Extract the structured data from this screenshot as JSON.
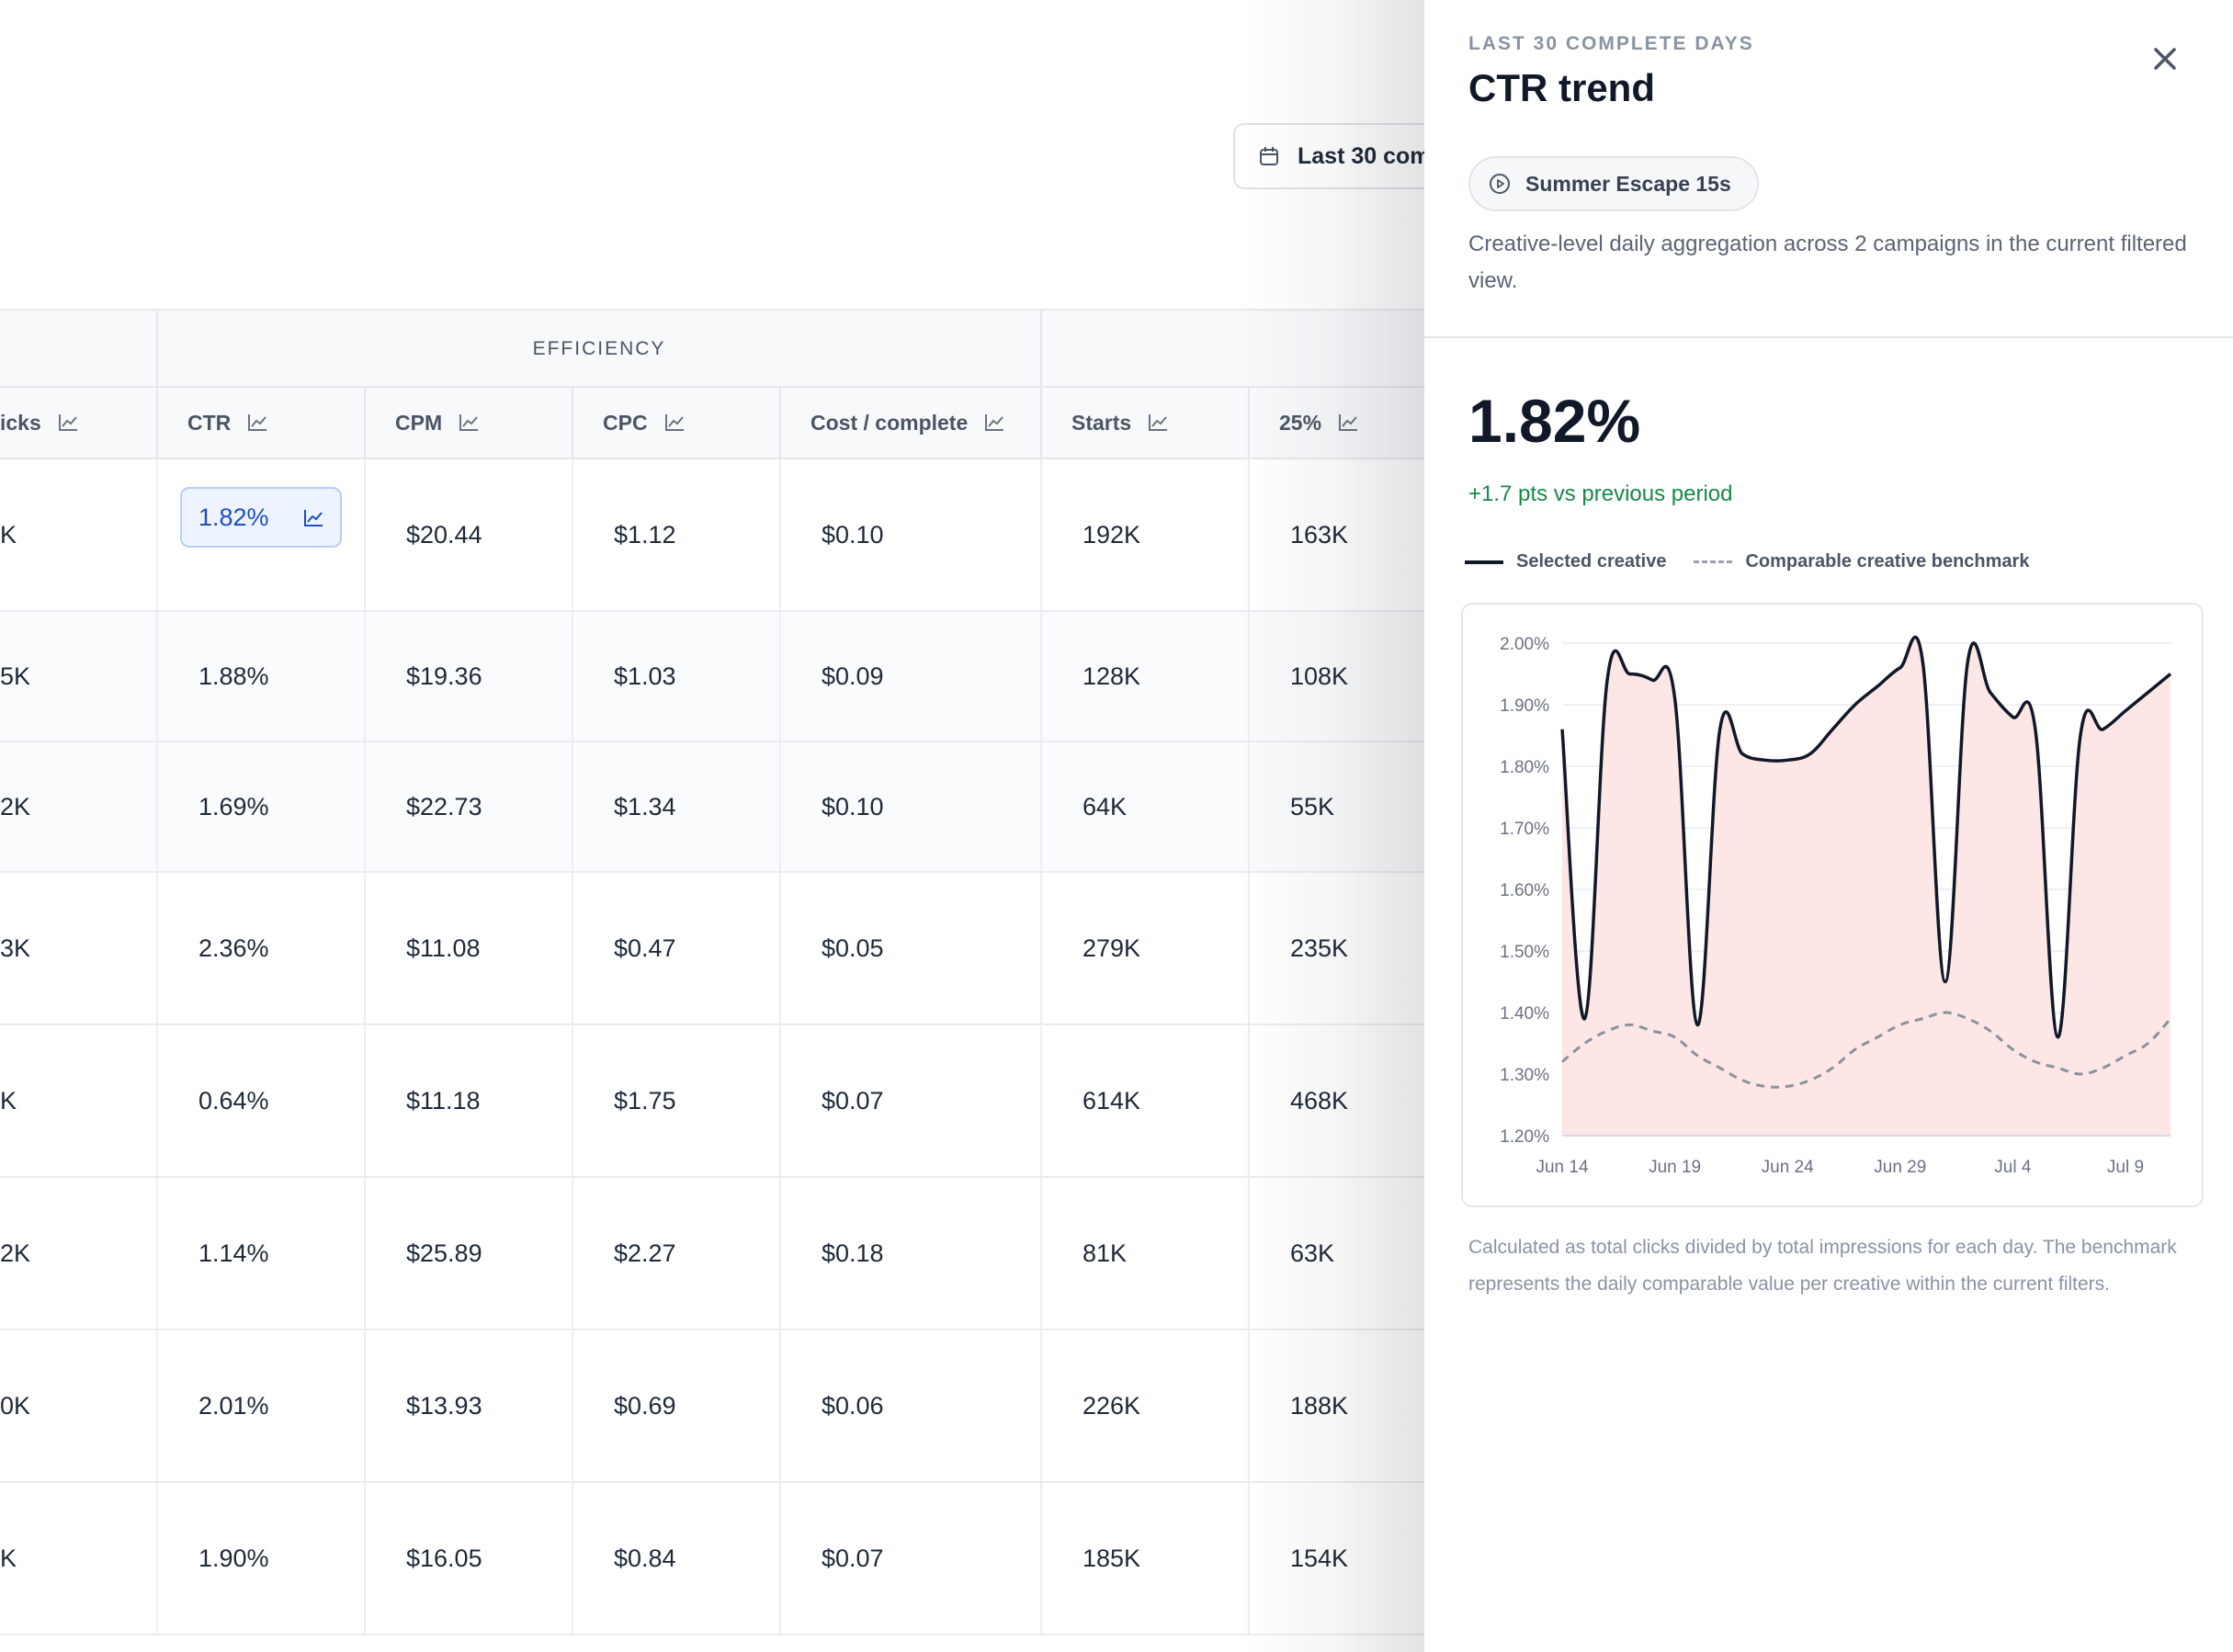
{
  "toolbar": {
    "date_range_label": "Last 30 com"
  },
  "table": {
    "groups": [
      {
        "label": "EFFICIENCY"
      }
    ],
    "columns": [
      {
        "label": "icks"
      },
      {
        "label": "CTR"
      },
      {
        "label": "CPM"
      },
      {
        "label": "CPC"
      },
      {
        "label": "Cost / complete"
      },
      {
        "label": "Starts"
      },
      {
        "label": "25%"
      }
    ],
    "rows": [
      [
        "K",
        "1.82%",
        "$20.44",
        "$1.12",
        "$0.10",
        "192K",
        "163K"
      ],
      [
        "5K",
        "1.88%",
        "$19.36",
        "$1.03",
        "$0.09",
        "128K",
        "108K"
      ],
      [
        "2K",
        "1.69%",
        "$22.73",
        "$1.34",
        "$0.10",
        "64K",
        "55K"
      ],
      [
        "3K",
        "2.36%",
        "$11.08",
        "$0.47",
        "$0.05",
        "279K",
        "235K"
      ],
      [
        "K",
        "0.64%",
        "$11.18",
        "$1.75",
        "$0.07",
        "614K",
        "468K"
      ],
      [
        "2K",
        "1.14%",
        "$25.89",
        "$2.27",
        "$0.18",
        "81K",
        "63K"
      ],
      [
        "0K",
        "2.01%",
        "$13.93",
        "$0.69",
        "$0.06",
        "226K",
        "188K"
      ],
      [
        "K",
        "1.90%",
        "$16.05",
        "$0.84",
        "$0.07",
        "185K",
        "154K"
      ]
    ]
  },
  "drawer": {
    "eyebrow": "LAST 30 COMPLETE DAYS",
    "title": "CTR trend",
    "creative_chip": "Summer Escape 15s",
    "description": "Creative-level daily aggregation across 2 campaigns in the current filtered view.",
    "metric_value": "1.82%",
    "metric_delta": "+1.7 pts vs previous period",
    "legend": {
      "selected": "Selected creative",
      "benchmark": "Comparable creative benchmark"
    },
    "footnote": "Calculated as total clicks divided by total impressions for each day. The benchmark represents the daily comparable value per creative within the current filters."
  },
  "colors": {
    "accent_blue": "#1d4fc0",
    "positive_green": "#168a47",
    "area_fill": "#fde7e6",
    "line": "#111827",
    "benchmark": "#9ca3af"
  },
  "chart_data": {
    "type": "area",
    "title": "",
    "xlabel": "",
    "ylabel": "",
    "x_ticks": [
      "Jun 14",
      "Jun 19",
      "Jun 24",
      "Jun 29",
      "Jul 4",
      "Jul 9"
    ],
    "y_ticks": [
      "1.20%",
      "1.30%",
      "1.40%",
      "1.50%",
      "1.60%",
      "1.70%",
      "1.80%",
      "1.90%",
      "2.00%"
    ],
    "ylim": [
      1.2,
      2.0
    ],
    "grid": true,
    "legend_position": "top-left",
    "series": [
      {
        "name": "Selected creative",
        "style": "solid",
        "points": [
          {
            "x": "Jun 14",
            "y": 1.86
          },
          {
            "x": "Jun 15",
            "y": 1.39
          },
          {
            "x": "Jun 16",
            "y": 1.94
          },
          {
            "x": "Jun 17",
            "y": 1.95
          },
          {
            "x": "Jun 18",
            "y": 1.94
          },
          {
            "x": "Jun 19",
            "y": 1.91
          },
          {
            "x": "Jun 20",
            "y": 1.38
          },
          {
            "x": "Jun 21",
            "y": 1.86
          },
          {
            "x": "Jun 22",
            "y": 1.82
          },
          {
            "x": "Jun 23",
            "y": 1.81
          },
          {
            "x": "Jun 24",
            "y": 1.81
          },
          {
            "x": "Jun 25",
            "y": 1.82
          },
          {
            "x": "Jun 26",
            "y": 1.86
          },
          {
            "x": "Jun 27",
            "y": 1.9
          },
          {
            "x": "Jun 28",
            "y": 1.93
          },
          {
            "x": "Jun 29",
            "y": 1.96
          },
          {
            "x": "Jun 30",
            "y": 1.97
          },
          {
            "x": "Jul 1",
            "y": 1.45
          },
          {
            "x": "Jul 2",
            "y": 1.97
          },
          {
            "x": "Jul 3",
            "y": 1.92
          },
          {
            "x": "Jul 4",
            "y": 1.88
          },
          {
            "x": "Jul 5",
            "y": 1.86
          },
          {
            "x": "Jul 6",
            "y": 1.36
          },
          {
            "x": "Jul 7",
            "y": 1.85
          },
          {
            "x": "Jul 8",
            "y": 1.86
          },
          {
            "x": "Jul 9",
            "y": 1.89
          },
          {
            "x": "Jul 10",
            "y": 1.92
          },
          {
            "x": "Jul 11",
            "y": 1.95
          }
        ]
      },
      {
        "name": "Comparable creative benchmark",
        "style": "dashed",
        "points": [
          {
            "x": "Jun 14",
            "y": 1.32
          },
          {
            "x": "Jun 15",
            "y": 1.35
          },
          {
            "x": "Jun 16",
            "y": 1.37
          },
          {
            "x": "Jun 17",
            "y": 1.38
          },
          {
            "x": "Jun 18",
            "y": 1.37
          },
          {
            "x": "Jun 19",
            "y": 1.36
          },
          {
            "x": "Jun 20",
            "y": 1.33
          },
          {
            "x": "Jun 21",
            "y": 1.31
          },
          {
            "x": "Jun 22",
            "y": 1.29
          },
          {
            "x": "Jun 23",
            "y": 1.28
          },
          {
            "x": "Jun 24",
            "y": 1.28
          },
          {
            "x": "Jun 25",
            "y": 1.29
          },
          {
            "x": "Jun 26",
            "y": 1.31
          },
          {
            "x": "Jun 27",
            "y": 1.34
          },
          {
            "x": "Jun 28",
            "y": 1.36
          },
          {
            "x": "Jun 29",
            "y": 1.38
          },
          {
            "x": "Jun 30",
            "y": 1.39
          },
          {
            "x": "Jul 1",
            "y": 1.4
          },
          {
            "x": "Jul 2",
            "y": 1.39
          },
          {
            "x": "Jul 3",
            "y": 1.37
          },
          {
            "x": "Jul 4",
            "y": 1.34
          },
          {
            "x": "Jul 5",
            "y": 1.32
          },
          {
            "x": "Jul 6",
            "y": 1.31
          },
          {
            "x": "Jul 7",
            "y": 1.3
          },
          {
            "x": "Jul 8",
            "y": 1.31
          },
          {
            "x": "Jul 9",
            "y": 1.33
          },
          {
            "x": "Jul 10",
            "y": 1.35
          },
          {
            "x": "Jul 11",
            "y": 1.39
          }
        ]
      }
    ]
  }
}
